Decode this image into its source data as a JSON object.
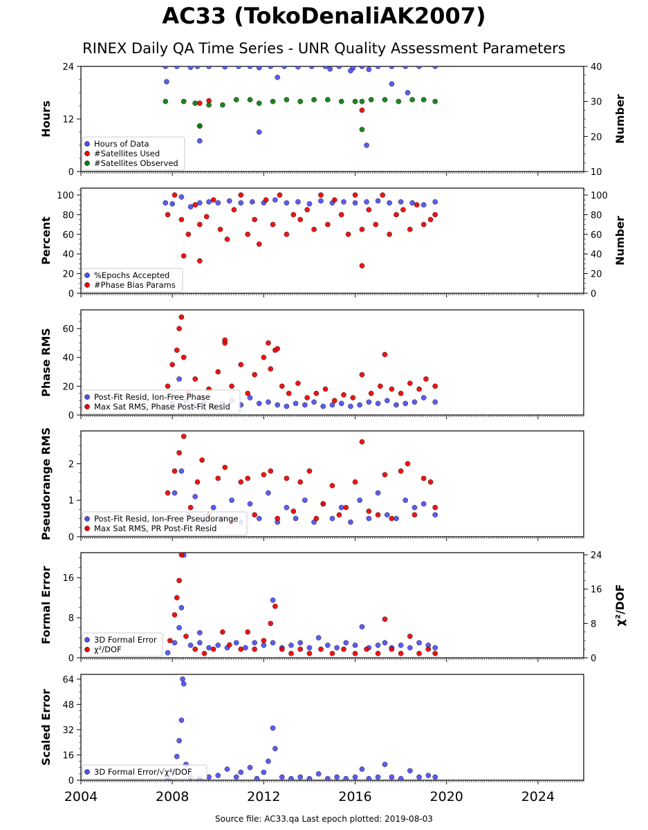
{
  "header": {
    "title": "AC33 (TokoDenaliAK2007)",
    "subtitle": "RINEX Daily QA Time Series - UNR Quality Assessment Parameters"
  },
  "footer": {
    "source": "Source file: AC33.qa Last epoch plotted: 2019-08-03"
  },
  "colors": {
    "blue": "#4f4ff0",
    "red": "#ee0000",
    "green": "#0b7a0b"
  },
  "chart_data": [
    {
      "type": "scatter",
      "ylabel": "Hours",
      "ylabel2": "Number",
      "xlim": [
        2004,
        2026
      ],
      "ylim": [
        0,
        24
      ],
      "ylim2": [
        10,
        40
      ],
      "yticks": [
        0,
        12,
        24
      ],
      "yticks2": [
        10,
        20,
        30,
        40
      ],
      "legend_position": "lower-left",
      "series": [
        {
          "name": "Hours of Data",
          "color": "blue",
          "axis": "left",
          "x": [
            2007.7,
            2008.2,
            2008.8,
            2009.1,
            2009.6,
            2010.3,
            2010.9,
            2011.4,
            2011.8,
            2012.3,
            2012.9,
            2013.5,
            2014.1,
            2014.7,
            2015.3,
            2015.9,
            2016.3,
            2016.5,
            2017.0,
            2017.6,
            2018.2,
            2018.8,
            2019.5,
            2007.75,
            2009.2,
            2011.8,
            2012.6,
            2014.9,
            2015.8,
            2016.6,
            2017.6,
            2018.3
          ],
          "y": [
            24,
            24,
            23.8,
            24,
            24,
            23.9,
            24,
            24,
            23.7,
            24,
            24,
            23.9,
            24,
            24,
            24,
            23.6,
            24,
            6,
            24,
            24,
            24,
            24,
            24,
            20.5,
            7,
            9,
            21.5,
            23.4,
            23,
            23.3,
            20,
            18
          ]
        },
        {
          "name": "#Satellites Used",
          "color": "red",
          "axis": "right",
          "x": [
            2009.2,
            2009.6,
            2016.3
          ],
          "y": [
            29.5,
            30.2,
            27.5
          ]
        },
        {
          "name": "#Satellites Observed",
          "color": "green",
          "axis": "right",
          "x": [
            2007.7,
            2008.5,
            2009.0,
            2009.2,
            2009.6,
            2010.2,
            2010.8,
            2011.4,
            2011.8,
            2012.4,
            2013.0,
            2013.6,
            2014.2,
            2014.8,
            2015.4,
            2016.0,
            2016.3,
            2016.7,
            2017.3,
            2017.9,
            2018.5,
            2019.0,
            2019.5,
            2009.2,
            2016.3
          ],
          "y": [
            30,
            30,
            29.5,
            23,
            29,
            29,
            30.5,
            30.5,
            29.5,
            30,
            30.5,
            30,
            30.5,
            30.5,
            30,
            30,
            30,
            30.5,
            30.5,
            30,
            30.5,
            30.5,
            30,
            23,
            22
          ]
        }
      ]
    },
    {
      "type": "scatter",
      "ylabel": "Percent",
      "ylabel2": "Number",
      "xlim": [
        2004,
        2026
      ],
      "ylim": [
        0,
        107
      ],
      "ylim2": [
        0,
        107
      ],
      "yticks": [
        0,
        20,
        40,
        60,
        80,
        100
      ],
      "yticks2": [
        0,
        20,
        40,
        60,
        80,
        100
      ],
      "legend_position": "lower-left",
      "series": [
        {
          "name": "%Epochs Accepted",
          "color": "blue",
          "axis": "left",
          "x": [
            2007.7,
            2008.0,
            2008.4,
            2008.8,
            2009.2,
            2009.6,
            2010.0,
            2010.5,
            2011.0,
            2011.5,
            2012.0,
            2012.5,
            2013.0,
            2013.5,
            2014.0,
            2014.5,
            2015.0,
            2015.5,
            2016.0,
            2016.5,
            2017.0,
            2017.5,
            2018.0,
            2018.5,
            2019.0,
            2019.5
          ],
          "y": [
            92,
            91,
            98,
            88,
            92,
            93,
            92,
            94,
            92,
            93,
            92,
            95,
            92,
            93,
            91,
            94,
            92,
            93,
            92,
            93,
            94,
            92,
            93,
            92,
            90,
            93
          ]
        },
        {
          "name": "#Phase Bias Params",
          "color": "red",
          "axis": "right",
          "x": [
            2007.8,
            2008.1,
            2008.4,
            2008.7,
            2009.0,
            2009.2,
            2009.5,
            2009.8,
            2010.1,
            2010.4,
            2010.7,
            2011.0,
            2011.3,
            2011.6,
            2011.8,
            2012.1,
            2012.4,
            2012.7,
            2013.0,
            2013.3,
            2013.6,
            2013.9,
            2014.2,
            2014.5,
            2014.8,
            2015.1,
            2015.4,
            2015.7,
            2016.0,
            2016.3,
            2016.6,
            2016.9,
            2017.2,
            2017.5,
            2017.8,
            2018.1,
            2018.4,
            2018.7,
            2019.0,
            2019.3,
            2019.5,
            2016.3,
            2009.2,
            2008.5
          ],
          "y": [
            80,
            100,
            75,
            60,
            90,
            70,
            78,
            95,
            65,
            55,
            85,
            100,
            60,
            75,
            50,
            95,
            70,
            100,
            60,
            80,
            75,
            85,
            65,
            100,
            70,
            95,
            80,
            60,
            100,
            65,
            85,
            70,
            100,
            60,
            80,
            85,
            65,
            90,
            70,
            75,
            80,
            28,
            33,
            38
          ]
        }
      ]
    },
    {
      "type": "scatter",
      "ylabel": "Phase RMS",
      "xlim": [
        2004,
        2026
      ],
      "ylim": [
        0,
        73
      ],
      "yticks": [
        0,
        20,
        40,
        60
      ],
      "legend_position": "lower-left",
      "series": [
        {
          "name": "Post-Fit Resid, Ion-Free Phase",
          "color": "blue",
          "axis": "left",
          "x": [
            2007.7,
            2008.0,
            2008.3,
            2008.6,
            2009.0,
            2009.4,
            2009.8,
            2010.2,
            2010.6,
            2011.0,
            2011.4,
            2011.8,
            2012.2,
            2012.6,
            2013.0,
            2013.4,
            2013.8,
            2014.2,
            2014.6,
            2015.0,
            2015.4,
            2015.8,
            2016.2,
            2016.6,
            2017.0,
            2017.4,
            2017.8,
            2018.2,
            2018.6,
            2019.0,
            2019.5
          ],
          "y": [
            6,
            8,
            25,
            10,
            7,
            9,
            6,
            8,
            10,
            7,
            12,
            8,
            9,
            7,
            6,
            8,
            7,
            9,
            6,
            7,
            8,
            6,
            7,
            9,
            8,
            10,
            7,
            8,
            9,
            12,
            9
          ]
        },
        {
          "name": "Max Sat RMS, Phase Post-Fit Resid",
          "color": "red",
          "axis": "left",
          "x": [
            2007.8,
            2008.0,
            2008.2,
            2008.3,
            2008.4,
            2008.5,
            2008.7,
            2009.0,
            2009.3,
            2009.6,
            2010.0,
            2010.3,
            2010.6,
            2011.0,
            2011.3,
            2011.6,
            2012.0,
            2012.3,
            2012.5,
            2012.8,
            2013.1,
            2013.5,
            2013.9,
            2014.3,
            2014.7,
            2015.1,
            2015.5,
            2015.9,
            2016.3,
            2016.7,
            2017.1,
            2017.3,
            2017.6,
            2018.0,
            2018.4,
            2018.8,
            2019.1,
            2019.5,
            2010.3,
            2012.2,
            2012.6
          ],
          "y": [
            20,
            35,
            45,
            60,
            68,
            40,
            15,
            25,
            12,
            18,
            30,
            50,
            20,
            35,
            15,
            28,
            40,
            32,
            45,
            20,
            15,
            22,
            12,
            15,
            18,
            10,
            14,
            12,
            28,
            15,
            20,
            42,
            18,
            15,
            22,
            18,
            25,
            20,
            52,
            50,
            46
          ]
        }
      ]
    },
    {
      "type": "scatter",
      "ylabel": "Pseudorange RMS",
      "xlim": [
        2004,
        2026
      ],
      "ylim": [
        0,
        2.9
      ],
      "yticks": [
        0,
        1,
        2
      ],
      "legend_position": "lower-left",
      "series": [
        {
          "name": "Post-Fit Resid, Ion-Free Pseudorange",
          "color": "blue",
          "axis": "left",
          "x": [
            2007.8,
            2008.1,
            2008.4,
            2008.7,
            2009.0,
            2009.4,
            2009.8,
            2010.2,
            2010.6,
            2011.0,
            2011.4,
            2011.8,
            2012.2,
            2012.6,
            2013.0,
            2013.4,
            2013.8,
            2014.2,
            2014.6,
            2015.0,
            2015.4,
            2015.8,
            2016.2,
            2016.6,
            2017.0,
            2017.4,
            2017.8,
            2018.2,
            2018.6,
            2019.0,
            2019.5
          ],
          "y": [
            0.5,
            1.2,
            1.8,
            0.6,
            1.1,
            0.4,
            0.8,
            0.5,
            1.0,
            0.4,
            0.9,
            0.5,
            1.2,
            0.4,
            0.8,
            0.5,
            1.0,
            0.4,
            0.9,
            0.5,
            0.8,
            0.4,
            1.0,
            0.5,
            1.2,
            0.6,
            0.5,
            1.0,
            0.8,
            0.9,
            0.6
          ]
        },
        {
          "name": "Max Sat RMS, PR Post-Fit Resid",
          "color": "red",
          "axis": "left",
          "x": [
            2007.8,
            2008.1,
            2008.3,
            2008.5,
            2008.8,
            2009.1,
            2009.3,
            2009.6,
            2010.0,
            2010.3,
            2010.6,
            2011.0,
            2011.3,
            2011.6,
            2012.0,
            2012.3,
            2012.6,
            2013.0,
            2013.3,
            2013.6,
            2014.0,
            2014.3,
            2014.6,
            2015.0,
            2015.3,
            2015.6,
            2016.0,
            2016.3,
            2016.6,
            2017.0,
            2017.3,
            2017.6,
            2018.0,
            2018.3,
            2018.6,
            2019.0,
            2019.3,
            2019.5
          ],
          "y": [
            1.2,
            1.8,
            2.3,
            2.75,
            0.8,
            1.5,
            2.1,
            0.6,
            1.6,
            1.9,
            0.4,
            1.5,
            1.6,
            0.6,
            1.7,
            1.8,
            0.5,
            1.6,
            0.7,
            1.5,
            1.8,
            0.5,
            0.9,
            1.4,
            0.6,
            0.8,
            1.5,
            2.6,
            0.7,
            0.6,
            1.7,
            0.5,
            1.8,
            2.0,
            0.6,
            1.6,
            1.5,
            0.8
          ]
        }
      ]
    },
    {
      "type": "scatter",
      "ylabel": "Formal Error",
      "ylabel2": "χ²/DOF",
      "xlim": [
        2004,
        2026
      ],
      "ylim": [
        0,
        21
      ],
      "ylim2": [
        0,
        24.5
      ],
      "yticks": [
        0,
        8,
        16
      ],
      "yticks2": [
        0,
        8,
        16,
        24
      ],
      "legend_position": "lower-left",
      "series": [
        {
          "name": "3D Formal Error",
          "color": "blue",
          "axis": "left",
          "x": [
            2007.8,
            2008.1,
            2008.3,
            2008.4,
            2008.5,
            2008.8,
            2009.2,
            2009.6,
            2010.0,
            2010.4,
            2010.8,
            2011.2,
            2011.6,
            2012.0,
            2012.4,
            2012.8,
            2013.2,
            2013.6,
            2014.0,
            2014.4,
            2014.8,
            2015.2,
            2015.6,
            2016.0,
            2016.3,
            2016.6,
            2017.0,
            2017.3,
            2017.6,
            2018.0,
            2018.4,
            2018.8,
            2019.2,
            2019.5,
            2009.2,
            2012.4
          ],
          "y": [
            1,
            3,
            6,
            10,
            20.5,
            2.5,
            3,
            2,
            2.5,
            2,
            3,
            2,
            3,
            2.5,
            3,
            2,
            2.5,
            3,
            2,
            4,
            2.5,
            2,
            3,
            2.5,
            6.2,
            2,
            2.5,
            3,
            2,
            2.5,
            2,
            3,
            2.5,
            2,
            5,
            11.5
          ]
        },
        {
          "name": "χ²/DOF",
          "color": "red",
          "axis": "right",
          "x": [
            2007.9,
            2008.1,
            2008.2,
            2008.3,
            2008.4,
            2008.6,
            2009.0,
            2009.4,
            2009.8,
            2010.2,
            2010.5,
            2011.0,
            2011.3,
            2011.6,
            2012.0,
            2012.3,
            2012.5,
            2012.8,
            2013.2,
            2013.6,
            2014.0,
            2014.5,
            2015.0,
            2015.5,
            2016.0,
            2016.5,
            2017.0,
            2017.3,
            2017.6,
            2018.0,
            2018.4,
            2018.8,
            2019.2,
            2019.5
          ],
          "y": [
            4,
            10,
            14,
            18,
            24,
            5,
            2,
            1,
            2,
            6,
            3,
            2,
            6,
            2,
            4,
            8,
            12,
            2,
            1,
            2,
            1,
            2,
            1,
            2,
            1,
            2,
            1,
            9,
            2,
            1,
            5,
            1,
            2,
            1
          ]
        }
      ]
    },
    {
      "type": "scatter",
      "ylabel": "Scaled Error",
      "xlim": [
        2004,
        2026
      ],
      "ylim": [
        0,
        67
      ],
      "yticks": [
        0,
        16,
        32,
        48,
        64
      ],
      "xticks": [
        2004,
        2008,
        2012,
        2016,
        2020,
        2024
      ],
      "legend_position": "lower-left",
      "series": [
        {
          "name": "3D Formal Error/√χ²/DOF",
          "color": "blue",
          "axis": "left",
          "x": [
            2007.8,
            2008.0,
            2008.2,
            2008.3,
            2008.4,
            2008.45,
            2008.5,
            2008.6,
            2008.8,
            2009.2,
            2009.6,
            2010.0,
            2010.4,
            2010.8,
            2011.0,
            2011.4,
            2011.7,
            2012.0,
            2012.2,
            2012.4,
            2012.5,
            2012.8,
            2013.2,
            2013.6,
            2014.0,
            2014.4,
            2014.8,
            2015.2,
            2015.6,
            2016.0,
            2016.3,
            2016.6,
            2017.0,
            2017.3,
            2017.6,
            2018.0,
            2018.4,
            2018.8,
            2019.2,
            2019.5
          ],
          "y": [
            1,
            5,
            15,
            25,
            38,
            64,
            61,
            10,
            2,
            1,
            2,
            3,
            7,
            2,
            5,
            8,
            1,
            5,
            12,
            33,
            20,
            2,
            1,
            2,
            1,
            4,
            1,
            2,
            1,
            2,
            7,
            1,
            2,
            10,
            2,
            1,
            6,
            2,
            3,
            2
          ]
        }
      ]
    }
  ]
}
